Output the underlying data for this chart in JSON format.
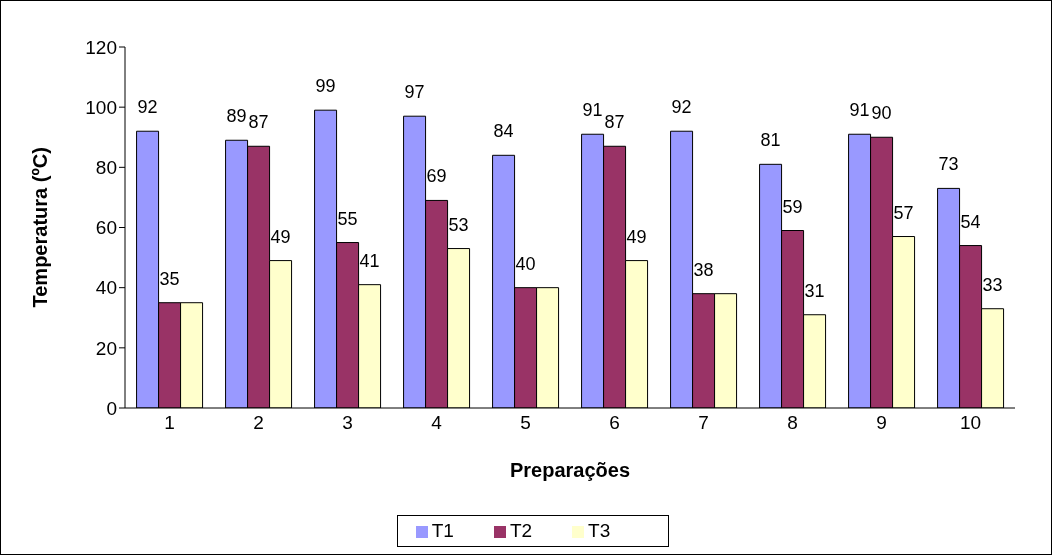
{
  "chart_data": {
    "type": "bar",
    "xlabel": "Preparações",
    "ylabel": "Temperatura (ºC)",
    "categories": [
      "1",
      "2",
      "3",
      "4",
      "5",
      "6",
      "7",
      "8",
      "9",
      "10"
    ],
    "series": [
      {
        "name": "T1",
        "color": "#9999ff",
        "values": [
          92,
          89,
          99,
          97,
          84,
          91,
          92,
          81,
          91,
          73
        ],
        "value_labels": [
          "92",
          "89",
          "99",
          "97",
          "84",
          "91",
          "92",
          "81",
          "91",
          "73"
        ]
      },
      {
        "name": "T2",
        "color": "#993366",
        "values": [
          35,
          87,
          55,
          69,
          40,
          87,
          38,
          59,
          90,
          54
        ],
        "value_labels": [
          "35",
          "87",
          "55",
          "69",
          "40",
          "87",
          "38",
          "59",
          "90",
          "54"
        ]
      },
      {
        "name": "T3",
        "color": "#ffffcc",
        "values": [
          35,
          49,
          41,
          53,
          40,
          49,
          38,
          31,
          57,
          33
        ],
        "value_labels": [
          null,
          "49",
          "41",
          "53",
          null,
          "49",
          null,
          "31",
          "57",
          "33"
        ]
      }
    ],
    "ylim": [
      0,
      120
    ],
    "yticks": [
      0,
      20,
      40,
      60,
      80,
      100,
      120
    ],
    "grid": false,
    "legend": "bottom"
  }
}
